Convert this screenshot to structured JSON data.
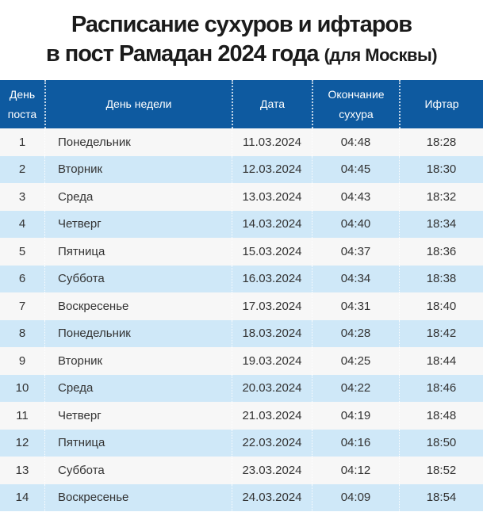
{
  "title": {
    "line1": "Расписание сухуров и ифтаров",
    "line2_main": "в пост Рамадан 2024 года",
    "line2_note": "(для Москвы)"
  },
  "table": {
    "columns": [
      {
        "key": "day",
        "label": "День поста"
      },
      {
        "key": "weekday",
        "label": "День недели"
      },
      {
        "key": "date",
        "label": "Дата"
      },
      {
        "key": "suhur_end",
        "label": "Окончание сухура"
      },
      {
        "key": "iftar",
        "label": "Ифтар"
      }
    ],
    "rows": [
      {
        "day": "1",
        "weekday": "Понедельник",
        "date": "11.03.2024",
        "suhur_end": "04:48",
        "iftar": "18:28"
      },
      {
        "day": "2",
        "weekday": "Вторник",
        "date": "12.03.2024",
        "suhur_end": "04:45",
        "iftar": "18:30"
      },
      {
        "day": "3",
        "weekday": "Среда",
        "date": "13.03.2024",
        "suhur_end": "04:43",
        "iftar": "18:32"
      },
      {
        "day": "4",
        "weekday": "Четверг",
        "date": "14.03.2024",
        "suhur_end": "04:40",
        "iftar": "18:34"
      },
      {
        "day": "5",
        "weekday": "Пятница",
        "date": "15.03.2024",
        "suhur_end": "04:37",
        "iftar": "18:36"
      },
      {
        "day": "6",
        "weekday": "Суббота",
        "date": "16.03.2024",
        "suhur_end": "04:34",
        "iftar": "18:38"
      },
      {
        "day": "7",
        "weekday": "Воскресенье",
        "date": "17.03.2024",
        "suhur_end": "04:31",
        "iftar": "18:40"
      },
      {
        "day": "8",
        "weekday": "Понедельник",
        "date": "18.03.2024",
        "suhur_end": "04:28",
        "iftar": "18:42"
      },
      {
        "day": "9",
        "weekday": "Вторник",
        "date": "19.03.2024",
        "suhur_end": "04:25",
        "iftar": "18:44"
      },
      {
        "day": "10",
        "weekday": "Среда",
        "date": "20.03.2024",
        "suhur_end": "04:22",
        "iftar": "18:46"
      },
      {
        "day": "11",
        "weekday": "Четверг",
        "date": "21.03.2024",
        "suhur_end": "04:19",
        "iftar": "18:48"
      },
      {
        "day": "12",
        "weekday": "Пятница",
        "date": "22.03.2024",
        "suhur_end": "04:16",
        "iftar": "18:50"
      },
      {
        "day": "13",
        "weekday": "Суббота",
        "date": "23.03.2024",
        "suhur_end": "04:12",
        "iftar": "18:52"
      },
      {
        "day": "14",
        "weekday": "Воскресенье",
        "date": "24.03.2024",
        "suhur_end": "04:09",
        "iftar": "18:54"
      }
    ]
  },
  "colors": {
    "header_bg": "#0e5aa0",
    "header_text": "#ffffff",
    "row_odd_bg": "#f7f7f7",
    "row_even_bg": "#cfe8f8",
    "body_text": "#333333",
    "title_text": "#1b1b1b"
  }
}
